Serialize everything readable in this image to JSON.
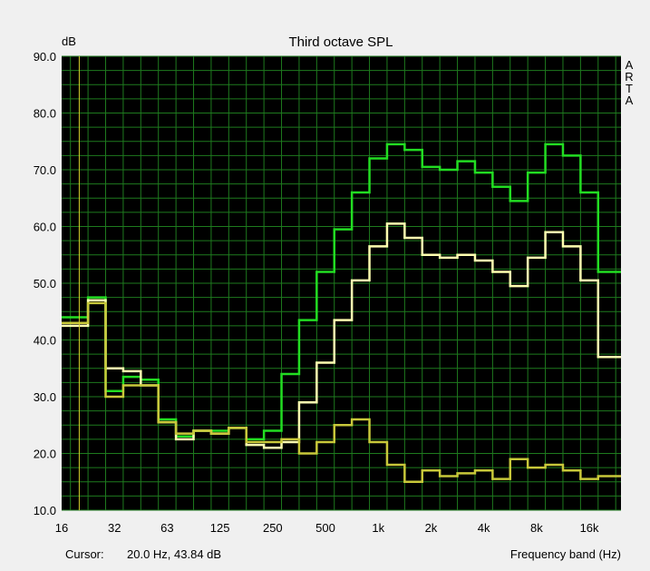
{
  "chart_data": {
    "type": "line",
    "title": "Third octave SPL",
    "ylabel": "dB",
    "xlabel": "Frequency band (Hz)",
    "side_label": [
      "A",
      "R",
      "T",
      "A"
    ],
    "cursor_label": "Cursor:",
    "cursor_value": "20.0 Hz, 43.84 dB",
    "ylim": [
      10,
      90
    ],
    "ytick_values": [
      10,
      20,
      30,
      40,
      50,
      60,
      70,
      80,
      90
    ],
    "ytick_labels": [
      "10.0",
      "20.0",
      "30.0",
      "40.0",
      "50.0",
      "60.0",
      "70.0",
      "80.0",
      "90.0"
    ],
    "x_band_min": 0,
    "x_band_max": 31.8,
    "xtick_bands": [
      0,
      3,
      6,
      9,
      12,
      15,
      18,
      21,
      24,
      27,
      30
    ],
    "xtick_labels": [
      "16",
      "32",
      "63",
      "125",
      "250",
      "500",
      "1k",
      "2k",
      "4k",
      "8k",
      "16k"
    ],
    "grid": true,
    "cursor_band": 1,
    "bands": [
      "20",
      "25",
      "31.5",
      "40",
      "50",
      "63",
      "80",
      "100",
      "125",
      "160",
      "200",
      "250",
      "315",
      "400",
      "500",
      "630",
      "800",
      "1k",
      "1.25k",
      "1.6k",
      "2k",
      "2.5k",
      "3.15k",
      "4k",
      "5k",
      "6.3k",
      "8k",
      "10k",
      "12.5k",
      "16k",
      "20k"
    ],
    "series": [
      {
        "color": "#22dd22",
        "values": [
          44,
          47.5,
          31,
          33.5,
          33,
          26,
          23,
          24,
          24,
          24.5,
          22.5,
          24,
          34,
          43.5,
          52,
          59.5,
          66,
          72,
          74.5,
          73.5,
          70.5,
          70,
          71.5,
          69.5,
          67,
          64.5,
          69.5,
          74.5,
          72.5,
          66,
          52
        ]
      },
      {
        "color": "#ffffb0",
        "values": [
          42.5,
          47,
          35,
          34.5,
          32,
          25.5,
          22.5,
          24,
          23.5,
          24.5,
          21.5,
          21,
          22,
          29,
          36,
          43.5,
          50.5,
          56.5,
          60.5,
          58,
          55,
          54.5,
          55,
          54,
          52,
          49.5,
          54.5,
          59,
          56.5,
          50.5,
          37
        ]
      },
      {
        "color": "#c8c83a",
        "values": [
          43,
          46.5,
          30,
          32,
          32,
          25.5,
          23.5,
          24,
          23.5,
          24.5,
          22,
          22,
          22.5,
          20,
          22,
          25,
          26,
          22,
          18,
          15,
          17,
          16,
          16.5,
          17,
          15.5,
          19,
          17.5,
          18,
          17,
          15.5,
          16
        ]
      }
    ]
  }
}
